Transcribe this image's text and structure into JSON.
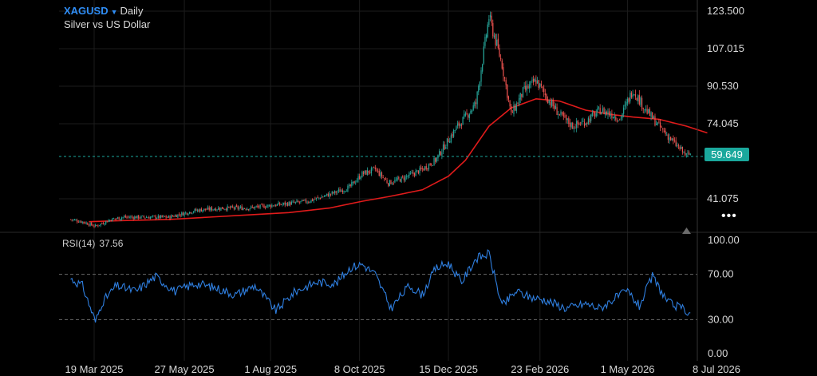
{
  "header": {
    "symbol": "XAGUSD",
    "interval": "Daily",
    "subtitle": "Silver vs US Dollar"
  },
  "colors": {
    "background": "#000000",
    "candle_up": "#26a69a",
    "candle_down": "#ef5350",
    "moving_average": "#e01b1b",
    "rsi_line": "#2f7fe0",
    "last_price": "#1aa89c",
    "grid": "#1c1c1c"
  },
  "icons": {
    "symbol_caret": "caret-down-icon",
    "more": "more-dots-icon",
    "scroll_marker": "triangle-up-icon"
  },
  "last_price": "59.649",
  "indicator": {
    "name": "RSI(14)",
    "value": "37.56"
  },
  "chart_data": [
    {
      "type": "line",
      "title": "XAGUSD Daily — Silver vs US Dollar",
      "x_tick_labels": [
        "19 Mar 2025",
        "27 May 2025",
        "1 Aug 2025",
        "8 Oct 2025",
        "15 Dec 2025",
        "23 Feb 2026",
        "1 May 2026",
        "8 Jul 2026"
      ],
      "y_tick_labels": [
        "123.500",
        "107.015",
        "90.530",
        "74.045",
        "41.075"
      ],
      "ylim": [
        23,
        128
      ],
      "y_scale": "linear",
      "grid": true,
      "series": [
        {
          "name": "XAGUSD",
          "kind": "candles",
          "x": [
            "2025-03-01",
            "2025-03-10",
            "2025-03-20",
            "2025-04-01",
            "2025-04-10",
            "2025-04-25",
            "2025-05-15",
            "2025-06-05",
            "2025-06-25",
            "2025-07-15",
            "2025-07-30",
            "2025-08-15",
            "2025-08-30",
            "2025-09-15",
            "2025-09-30",
            "2025-10-10",
            "2025-10-20",
            "2025-10-30",
            "2025-11-10",
            "2025-11-25",
            "2025-12-05",
            "2025-12-15",
            "2025-12-22",
            "2025-12-28",
            "2026-01-05",
            "2026-01-15",
            "2026-01-25",
            "2026-02-01",
            "2026-02-10",
            "2026-02-20",
            "2026-03-01",
            "2026-03-10",
            "2026-03-20",
            "2026-03-30",
            "2026-04-10",
            "2026-04-20",
            "2026-04-25",
            "2026-05-05",
            "2026-05-15",
            "2026-05-25",
            "2026-06-05",
            "2026-06-15",
            "2026-06-25",
            "2026-07-01"
          ],
          "y": [
            32,
            31,
            29,
            32,
            33,
            33,
            33,
            36,
            37,
            37,
            38,
            39,
            40,
            43,
            46,
            52,
            54,
            48,
            50,
            54,
            58,
            67,
            73,
            77,
            83,
            121,
            100,
            78,
            88,
            93,
            85,
            78,
            73,
            75,
            80,
            78,
            76,
            89,
            80,
            73,
            66,
            60,
            63,
            60
          ]
        },
        {
          "name": "Moving Average",
          "kind": "line",
          "x": [
            "2025-03-15",
            "2025-04-10",
            "2025-05-15",
            "2025-06-15",
            "2025-07-15",
            "2025-08-15",
            "2025-09-15",
            "2025-10-10",
            "2025-10-30",
            "2025-11-25",
            "2025-12-15",
            "2025-12-28",
            "2026-01-15",
            "2026-02-01",
            "2026-02-20",
            "2026-03-10",
            "2026-03-30",
            "2026-04-20",
            "2026-05-05",
            "2026-05-25",
            "2026-06-15",
            "2026-07-01"
          ],
          "y": [
            31,
            31.5,
            32,
            33,
            34,
            35,
            37,
            40,
            42,
            45,
            51,
            58,
            73,
            81,
            85,
            84,
            80,
            78,
            77,
            76,
            73,
            70
          ]
        }
      ]
    },
    {
      "type": "line",
      "title": "RSI(14)",
      "y_tick_labels": [
        "100.00",
        "70.00",
        "30.00",
        "0.00"
      ],
      "ylim": [
        0,
        100
      ],
      "reference_lines": [
        70,
        30
      ],
      "series": [
        {
          "name": "RSI(14)",
          "x": [
            "2025-03-01",
            "2025-03-10",
            "2025-03-20",
            "2025-03-25",
            "2025-04-05",
            "2025-04-20",
            "2025-05-05",
            "2025-05-20",
            "2025-06-05",
            "2025-06-20",
            "2025-07-05",
            "2025-07-20",
            "2025-08-05",
            "2025-08-20",
            "2025-09-05",
            "2025-09-20",
            "2025-10-01",
            "2025-10-10",
            "2025-10-20",
            "2025-11-01",
            "2025-11-15",
            "2025-11-25",
            "2025-12-05",
            "2025-12-15",
            "2025-12-25",
            "2026-01-05",
            "2026-01-15",
            "2026-01-25",
            "2026-02-05",
            "2026-02-15",
            "2026-02-28",
            "2026-03-15",
            "2026-03-30",
            "2026-04-10",
            "2026-04-20",
            "2026-05-01",
            "2026-05-10",
            "2026-05-20",
            "2026-06-01",
            "2026-06-15",
            "2026-06-25",
            "2026-07-01"
          ],
          "y": [
            66,
            60,
            28,
            45,
            60,
            55,
            68,
            55,
            62,
            58,
            52,
            60,
            38,
            55,
            63,
            62,
            76,
            79,
            70,
            40,
            60,
            52,
            75,
            80,
            63,
            84,
            88,
            42,
            55,
            50,
            47,
            40,
            44,
            40,
            48,
            55,
            42,
            68,
            45,
            38,
            30,
            40
          ]
        }
      ]
    }
  ]
}
